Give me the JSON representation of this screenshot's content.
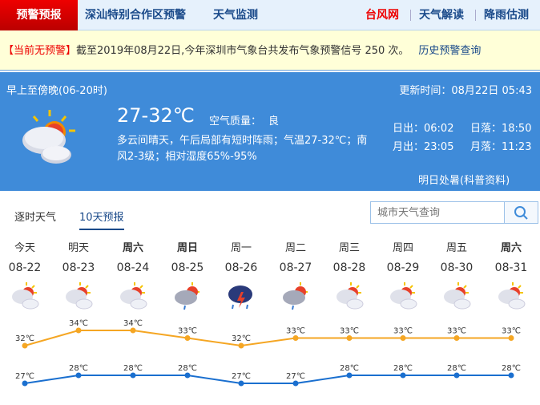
{
  "nav": {
    "home": "预警预报",
    "items": [
      "深汕特别合作区预警",
      "天气监测"
    ],
    "right": [
      "台风网",
      "天气解读",
      "降雨估测"
    ]
  },
  "alert": {
    "status": "【当前无预警】",
    "text": "截至2019年08月22日,今年深圳市气象台共发布气象预警信号 250 次。",
    "link": "历史预警查询"
  },
  "today": {
    "period": "早上至傍晚(06-20时)",
    "updated": "更新时间：08月22日 05:43",
    "temp": "27-32℃",
    "aqi_label": "空气质量：",
    "aqi": "良",
    "desc1": "多云间晴天，午后局部有短时阵雨；气温27-32℃；南",
    "desc2": "风2-3级；相对湿度65%-95%",
    "sunrise": "日出：06:02",
    "sunset": "日落：18:50",
    "moonrise": "月出：23:05",
    "moonset": "月落：11:23",
    "link": "明日处暑(科普资料)",
    "icon": "partly-cloudy-icon"
  },
  "tabs": [
    "逐时天气",
    "10天预报"
  ],
  "search": {
    "placeholder": "城市天气查询"
  },
  "colors": {
    "high": "#f5a623",
    "low": "#1a6fcf",
    "panel": "#3f8bd9"
  },
  "forecast": [
    {
      "day": "今天",
      "date": "08-22",
      "icon": "partly-cloudy",
      "high": "32℃",
      "low": "27℃",
      "bold": false
    },
    {
      "day": "明天",
      "date": "08-23",
      "icon": "partly-cloudy",
      "high": "34℃",
      "low": "28℃",
      "bold": false
    },
    {
      "day": "周六",
      "date": "08-24",
      "icon": "partly-cloudy",
      "high": "34℃",
      "low": "28℃",
      "bold": true
    },
    {
      "day": "周日",
      "date": "08-25",
      "icon": "shower",
      "high": "33℃",
      "low": "28℃",
      "bold": true
    },
    {
      "day": "周一",
      "date": "08-26",
      "icon": "thunderstorm",
      "high": "32℃",
      "low": "27℃",
      "bold": false
    },
    {
      "day": "周二",
      "date": "08-27",
      "icon": "shower",
      "high": "33℃",
      "low": "27℃",
      "bold": false
    },
    {
      "day": "周三",
      "date": "08-28",
      "icon": "partly-cloudy",
      "high": "33℃",
      "low": "28℃",
      "bold": false
    },
    {
      "day": "周四",
      "date": "08-29",
      "icon": "partly-cloudy",
      "high": "33℃",
      "low": "28℃",
      "bold": false
    },
    {
      "day": "周五",
      "date": "08-30",
      "icon": "partly-cloudy",
      "high": "33℃",
      "low": "28℃",
      "bold": false
    },
    {
      "day": "周六",
      "date": "08-31",
      "icon": "partly-cloudy",
      "high": "33℃",
      "low": "28℃",
      "bold": true
    }
  ],
  "chart_data": {
    "type": "line",
    "categories": [
      "08-22",
      "08-23",
      "08-24",
      "08-25",
      "08-26",
      "08-27",
      "08-28",
      "08-29",
      "08-30",
      "08-31"
    ],
    "series": [
      {
        "values": [
          32,
          34,
          34,
          33,
          32,
          33,
          33,
          33,
          33,
          33
        ]
      },
      {
        "values": [
          27,
          28,
          28,
          28,
          27,
          27,
          28,
          28,
          28,
          28
        ]
      }
    ]
  }
}
